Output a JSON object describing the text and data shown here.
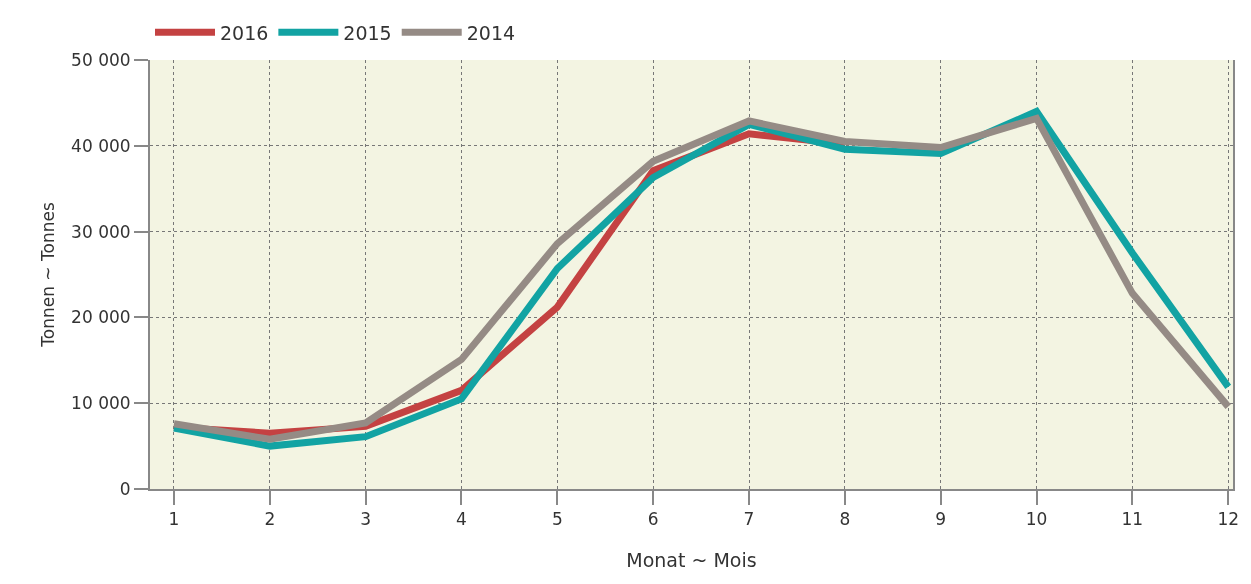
{
  "chart_data": {
    "type": "line",
    "xlabel": "Monat ~ Mois",
    "ylabel": "Tonnen ~ Tonnes",
    "x": [
      1,
      2,
      3,
      4,
      5,
      6,
      7,
      8,
      9,
      10,
      11,
      12
    ],
    "series": [
      {
        "name": "2016",
        "color": "#c44242",
        "values": [
          7200,
          6500,
          7300,
          11500,
          21200,
          37100,
          41400,
          40200,
          null,
          null,
          null,
          null
        ]
      },
      {
        "name": "2015",
        "color": "#12a3a3",
        "values": [
          7100,
          5000,
          6100,
          10500,
          25700,
          36300,
          42500,
          39600,
          39100,
          44000,
          27500,
          11900
        ]
      },
      {
        "name": "2014",
        "color": "#958b85",
        "values": [
          7600,
          5800,
          7700,
          15100,
          28600,
          38200,
          42900,
          40500,
          39800,
          43200,
          22800,
          9600
        ]
      }
    ],
    "xlim": [
      0.75,
      12.05
    ],
    "xticks": [
      1,
      2,
      3,
      4,
      5,
      6,
      7,
      8,
      9,
      10,
      11,
      12
    ],
    "ylim": [
      0,
      50000
    ],
    "yticks": [
      {
        "value": 0,
        "label": "0"
      },
      {
        "value": 10000,
        "label": "10 000"
      },
      {
        "value": 20000,
        "label": "20 000"
      },
      {
        "value": 30000,
        "label": "30 000"
      },
      {
        "value": 40000,
        "label": "40 000"
      },
      {
        "value": 50000,
        "label": "50 000"
      }
    ],
    "grid": true,
    "legend": "top left",
    "line_style": "solid",
    "marker": "none"
  }
}
